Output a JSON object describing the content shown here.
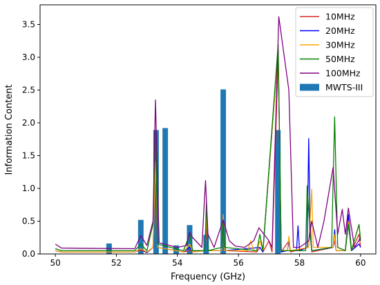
{
  "chart_data": {
    "type": "line",
    "xlabel": "Frequency (GHz)",
    "ylabel": "Information Content",
    "xlim": [
      49.5,
      60.5
    ],
    "ylim": [
      0,
      3.8
    ],
    "x_ticks": [
      50,
      52,
      54,
      56,
      58,
      60
    ],
    "x_tick_labels": [
      "50",
      "52",
      "54",
      "56",
      "58",
      "60"
    ],
    "y_ticks": [
      0.0,
      0.5,
      1.0,
      1.5,
      2.0,
      2.5,
      3.0,
      3.5
    ],
    "y_tick_labels": [
      "0.0",
      "0.5",
      "1.0",
      "1.5",
      "2.0",
      "2.5",
      "3.0",
      "3.5"
    ],
    "grid": false,
    "legend_position": "top-right",
    "bars": {
      "name": "MWTS-III",
      "color": "#1f77b4",
      "width": 0.18,
      "x": [
        51.76,
        52.8,
        53.3,
        53.6,
        53.96,
        54.4,
        54.94,
        55.5,
        57.29
      ],
      "values": [
        0.16,
        0.52,
        1.89,
        1.92,
        0.13,
        0.44,
        0.29,
        2.51,
        1.89
      ]
    },
    "series": [
      {
        "name": "10MHz",
        "color": "#d62728",
        "points": [
          [
            50,
            0.05
          ],
          [
            50.2,
            0.03
          ],
          [
            52.6,
            0.03
          ],
          [
            52.8,
            0.06
          ],
          [
            53.0,
            0.02
          ],
          [
            53.2,
            0.1
          ],
          [
            53.28,
            1.2
          ],
          [
            53.35,
            0.1
          ],
          [
            54.2,
            0.03
          ],
          [
            54.4,
            0.05
          ],
          [
            54.9,
            0.05
          ],
          [
            54.95,
            0.4
          ],
          [
            55.0,
            0.05
          ],
          [
            55.45,
            0.05
          ],
          [
            55.5,
            0.5
          ],
          [
            55.55,
            0.05
          ],
          [
            56.6,
            0.03
          ],
          [
            56.7,
            0.1
          ],
          [
            56.8,
            0.03
          ],
          [
            57.0,
            0.2
          ],
          [
            57.1,
            0.03
          ],
          [
            57.3,
            3.0
          ],
          [
            57.4,
            0.03
          ],
          [
            57.65,
            0.2
          ],
          [
            57.7,
            0.03
          ],
          [
            58.3,
            0.1
          ],
          [
            58.35,
            0.5
          ],
          [
            58.4,
            0.03
          ],
          [
            59.1,
            0.1
          ],
          [
            59.15,
            0.2
          ],
          [
            59.2,
            0.05
          ],
          [
            59.5,
            0.05
          ],
          [
            59.6,
            0.6
          ],
          [
            59.7,
            0.05
          ],
          [
            59.95,
            0.3
          ],
          [
            60,
            0.1
          ]
        ]
      },
      {
        "name": "20MHz",
        "color": "#0000ff",
        "points": [
          [
            50,
            0.05
          ],
          [
            50.2,
            0.03
          ],
          [
            52.6,
            0.03
          ],
          [
            52.8,
            0.08
          ],
          [
            53.0,
            0.02
          ],
          [
            53.2,
            0.1
          ],
          [
            53.28,
            1.3
          ],
          [
            53.35,
            0.1
          ],
          [
            54.2,
            0.03
          ],
          [
            54.4,
            0.1
          ],
          [
            54.5,
            0.03
          ],
          [
            54.9,
            0.05
          ],
          [
            54.95,
            0.5
          ],
          [
            55.0,
            0.05
          ],
          [
            55.45,
            0.05
          ],
          [
            55.5,
            0.55
          ],
          [
            55.55,
            0.05
          ],
          [
            56.7,
            0.1
          ],
          [
            56.8,
            0.03
          ],
          [
            57.3,
            3.1
          ],
          [
            57.4,
            0.03
          ],
          [
            57.6,
            0.05
          ],
          [
            57.65,
            0.2
          ],
          [
            57.7,
            0.05
          ],
          [
            57.9,
            0.05
          ],
          [
            57.95,
            0.43
          ],
          [
            58.0,
            0.05
          ],
          [
            58.25,
            0.1
          ],
          [
            58.3,
            1.76
          ],
          [
            58.35,
            0.3
          ],
          [
            58.4,
            0.05
          ],
          [
            59.1,
            0.1
          ],
          [
            59.15,
            0.37
          ],
          [
            59.2,
            0.05
          ],
          [
            59.5,
            0.05
          ],
          [
            59.6,
            0.6
          ],
          [
            59.7,
            0.05
          ],
          [
            59.95,
            0.15
          ],
          [
            60,
            0.1
          ]
        ]
      },
      {
        "name": "30MHz",
        "color": "#ffa500",
        "points": [
          [
            50,
            0.05
          ],
          [
            50.2,
            0.03
          ],
          [
            52.6,
            0.03
          ],
          [
            52.8,
            0.08
          ],
          [
            53.0,
            0.03
          ],
          [
            53.2,
            0.1
          ],
          [
            53.28,
            1.4
          ],
          [
            53.35,
            0.1
          ],
          [
            54.2,
            0.03
          ],
          [
            54.4,
            0.15
          ],
          [
            54.5,
            0.03
          ],
          [
            54.9,
            0.05
          ],
          [
            54.95,
            0.55
          ],
          [
            55.0,
            0.05
          ],
          [
            55.45,
            0.05
          ],
          [
            55.5,
            0.6
          ],
          [
            55.55,
            0.05
          ],
          [
            56.3,
            0.05
          ],
          [
            56.4,
            0.2
          ],
          [
            56.5,
            0.05
          ],
          [
            56.6,
            0.05
          ],
          [
            56.7,
            0.2
          ],
          [
            56.8,
            0.05
          ],
          [
            57.3,
            3.1
          ],
          [
            57.4,
            0.05
          ],
          [
            57.6,
            0.05
          ],
          [
            57.65,
            0.27
          ],
          [
            57.7,
            0.05
          ],
          [
            58.3,
            0.1
          ],
          [
            58.4,
            0.99
          ],
          [
            58.45,
            0.1
          ],
          [
            59.1,
            0.1
          ],
          [
            59.15,
            0.3
          ],
          [
            59.2,
            0.05
          ],
          [
            59.5,
            0.05
          ],
          [
            59.6,
            0.5
          ],
          [
            59.7,
            0.05
          ],
          [
            59.95,
            0.45
          ],
          [
            60,
            0.2
          ]
        ]
      },
      {
        "name": "50MHz",
        "color": "#008000",
        "points": [
          [
            50,
            0.08
          ],
          [
            50.2,
            0.05
          ],
          [
            52.6,
            0.05
          ],
          [
            52.8,
            0.15
          ],
          [
            53.0,
            0.05
          ],
          [
            53.2,
            0.46
          ],
          [
            53.28,
            1.88
          ],
          [
            53.35,
            0.15
          ],
          [
            54.2,
            0.05
          ],
          [
            54.4,
            0.3
          ],
          [
            54.5,
            0.05
          ],
          [
            54.9,
            0.05
          ],
          [
            54.95,
            0.8
          ],
          [
            55.0,
            0.05
          ],
          [
            55.45,
            0.1
          ],
          [
            55.5,
            0.5
          ],
          [
            55.55,
            0.1
          ],
          [
            56.6,
            0.05
          ],
          [
            56.7,
            0.3
          ],
          [
            56.8,
            0.05
          ],
          [
            57.3,
            3.2
          ],
          [
            57.4,
            0.05
          ],
          [
            58.2,
            0.05
          ],
          [
            58.25,
            1.04
          ],
          [
            58.35,
            0.3
          ],
          [
            58.4,
            0.05
          ],
          [
            59.05,
            0.1
          ],
          [
            59.15,
            2.09
          ],
          [
            59.25,
            0.1
          ],
          [
            59.5,
            0.05
          ],
          [
            59.6,
            0.45
          ],
          [
            59.7,
            0.05
          ],
          [
            59.95,
            0.45
          ],
          [
            60,
            0.2
          ]
        ]
      },
      {
        "name": "100MHz",
        "color": "#800080",
        "points": [
          [
            50,
            0.15
          ],
          [
            50.2,
            0.09
          ],
          [
            52.6,
            0.08
          ],
          [
            52.8,
            0.28
          ],
          [
            53.0,
            0.13
          ],
          [
            53.2,
            0.5
          ],
          [
            53.28,
            2.35
          ],
          [
            53.4,
            0.17
          ],
          [
            54.0,
            0.1
          ],
          [
            54.3,
            0.13
          ],
          [
            54.4,
            0.33
          ],
          [
            54.5,
            0.25
          ],
          [
            54.8,
            0.1
          ],
          [
            54.92,
            1.12
          ],
          [
            55.0,
            0.3
          ],
          [
            55.2,
            0.1
          ],
          [
            55.5,
            0.52
          ],
          [
            55.7,
            0.2
          ],
          [
            55.9,
            0.12
          ],
          [
            56.2,
            0.1
          ],
          [
            56.5,
            0.2
          ],
          [
            56.67,
            0.4
          ],
          [
            57.0,
            0.2
          ],
          [
            57.1,
            0.1
          ],
          [
            57.32,
            3.62
          ],
          [
            57.65,
            2.5
          ],
          [
            57.8,
            0.1
          ],
          [
            58.0,
            0.1
          ],
          [
            58.3,
            0.2
          ],
          [
            58.4,
            0.5
          ],
          [
            58.6,
            0.1
          ],
          [
            58.8,
            0.5
          ],
          [
            59.1,
            1.32
          ],
          [
            59.25,
            0.3
          ],
          [
            59.4,
            0.68
          ],
          [
            59.5,
            0.3
          ],
          [
            59.6,
            0.7
          ],
          [
            59.8,
            0.1
          ],
          [
            60,
            0.25
          ]
        ]
      }
    ]
  }
}
